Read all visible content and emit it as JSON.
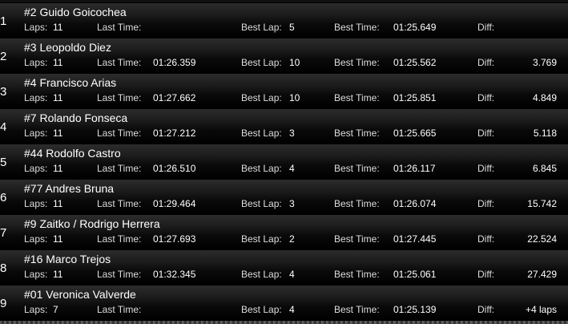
{
  "labels": {
    "laps": "Laps:",
    "last_time": "Last Time:",
    "best_lap": "Best Lap:",
    "best_time": "Best Time:",
    "diff": "Diff:"
  },
  "rows": [
    {
      "pos": "1",
      "name": "#2 Guido Goicochea",
      "laps": "11",
      "last_time": "",
      "best_lap": "5",
      "best_time": "01:25.649",
      "diff": ""
    },
    {
      "pos": "2",
      "name": "#3 Leopoldo Diez",
      "laps": "11",
      "last_time": "01:26.359",
      "best_lap": "10",
      "best_time": "01:25.562",
      "diff": "3.769"
    },
    {
      "pos": "3",
      "name": "#4 Francisco Arias",
      "laps": "11",
      "last_time": "01:27.662",
      "best_lap": "10",
      "best_time": "01:25.851",
      "diff": "4.849"
    },
    {
      "pos": "4",
      "name": "#7 Rolando Fonseca",
      "laps": "11",
      "last_time": "01:27.212",
      "best_lap": "3",
      "best_time": "01:25.665",
      "diff": "5.118"
    },
    {
      "pos": "5",
      "name": "#44 Rodolfo Castro",
      "laps": "11",
      "last_time": "01:26.510",
      "best_lap": "4",
      "best_time": "01:26.117",
      "diff": "6.845"
    },
    {
      "pos": "6",
      "name": "#77 Andres Bruna",
      "laps": "11",
      "last_time": "01:29.464",
      "best_lap": "3",
      "best_time": "01:26.074",
      "diff": "15.742"
    },
    {
      "pos": "7",
      "name": "#9 Zaitko / Rodrigo Herrera",
      "laps": "11",
      "last_time": "01:27.693",
      "best_lap": "2",
      "best_time": "01:27.445",
      "diff": "22.524"
    },
    {
      "pos": "8",
      "name": "#16 Marco Trejos",
      "laps": "11",
      "last_time": "01:32.345",
      "best_lap": "4",
      "best_time": "01:25.061",
      "diff": "27.429"
    },
    {
      "pos": "9",
      "name": "#01 Veronica Valverde",
      "laps": "7",
      "last_time": "",
      "best_lap": "4",
      "best_time": "01:25.139",
      "diff": "+4 laps"
    }
  ]
}
